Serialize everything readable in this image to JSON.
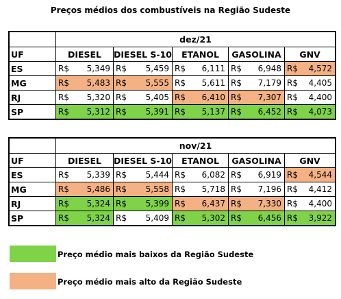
{
  "title": "Preços médios dos combustíveis na Região Sudeste",
  "currency": "R$",
  "columns": [
    "UF",
    "DIESEL",
    "DIESEL S-10",
    "ETANOL",
    "GASOLINA",
    "GNV"
  ],
  "colors": {
    "low": "#7ed348",
    "high": "#f4b183"
  },
  "tables": [
    {
      "period": "dez/21",
      "rows": [
        {
          "uf": "ES",
          "cells": [
            {
              "v": "5,349",
              "h": ""
            },
            {
              "v": "5,459",
              "h": ""
            },
            {
              "v": "6,111",
              "h": ""
            },
            {
              "v": "6,948",
              "h": ""
            },
            {
              "v": "4,572",
              "h": "high"
            }
          ]
        },
        {
          "uf": "MG",
          "cells": [
            {
              "v": "5,483",
              "h": "high"
            },
            {
              "v": "5,555",
              "h": "high"
            },
            {
              "v": "5,611",
              "h": ""
            },
            {
              "v": "7,179",
              "h": ""
            },
            {
              "v": "4,405",
              "h": ""
            }
          ]
        },
        {
          "uf": "RJ",
          "cells": [
            {
              "v": "5,320",
              "h": ""
            },
            {
              "v": "5,405",
              "h": ""
            },
            {
              "v": "6,410",
              "h": "high"
            },
            {
              "v": "7,307",
              "h": "high"
            },
            {
              "v": "4,400",
              "h": ""
            }
          ]
        },
        {
          "uf": "SP",
          "cells": [
            {
              "v": "5,312",
              "h": "low"
            },
            {
              "v": "5,391",
              "h": "low"
            },
            {
              "v": "5,137",
              "h": "low"
            },
            {
              "v": "6,452",
              "h": "low"
            },
            {
              "v": "4,073",
              "h": "low"
            }
          ]
        }
      ]
    },
    {
      "period": "nov/21",
      "rows": [
        {
          "uf": "ES",
          "cells": [
            {
              "v": "5,339",
              "h": ""
            },
            {
              "v": "5,444",
              "h": ""
            },
            {
              "v": "6,082",
              "h": ""
            },
            {
              "v": "6,919",
              "h": ""
            },
            {
              "v": "4,544",
              "h": "high"
            }
          ]
        },
        {
          "uf": "MG",
          "cells": [
            {
              "v": "5,486",
              "h": "high"
            },
            {
              "v": "5,558",
              "h": "high"
            },
            {
              "v": "5,718",
              "h": ""
            },
            {
              "v": "7,196",
              "h": ""
            },
            {
              "v": "4,412",
              "h": ""
            }
          ]
        },
        {
          "uf": "RJ",
          "cells": [
            {
              "v": "5,324",
              "h": "low"
            },
            {
              "v": "5,399",
              "h": "low"
            },
            {
              "v": "6,437",
              "h": "high"
            },
            {
              "v": "7,330",
              "h": "high"
            },
            {
              "v": "4,400",
              "h": ""
            }
          ]
        },
        {
          "uf": "SP",
          "cells": [
            {
              "v": "5,324",
              "h": "low"
            },
            {
              "v": "5,409",
              "h": ""
            },
            {
              "v": "5,302",
              "h": "low"
            },
            {
              "v": "6,456",
              "h": "low"
            },
            {
              "v": "3,922",
              "h": "low"
            }
          ]
        }
      ]
    }
  ],
  "legend": {
    "low_label": "Preço médio mais baixos da Região Sudeste",
    "high_label": "Preço médio mais alto da Região Sudeste"
  }
}
